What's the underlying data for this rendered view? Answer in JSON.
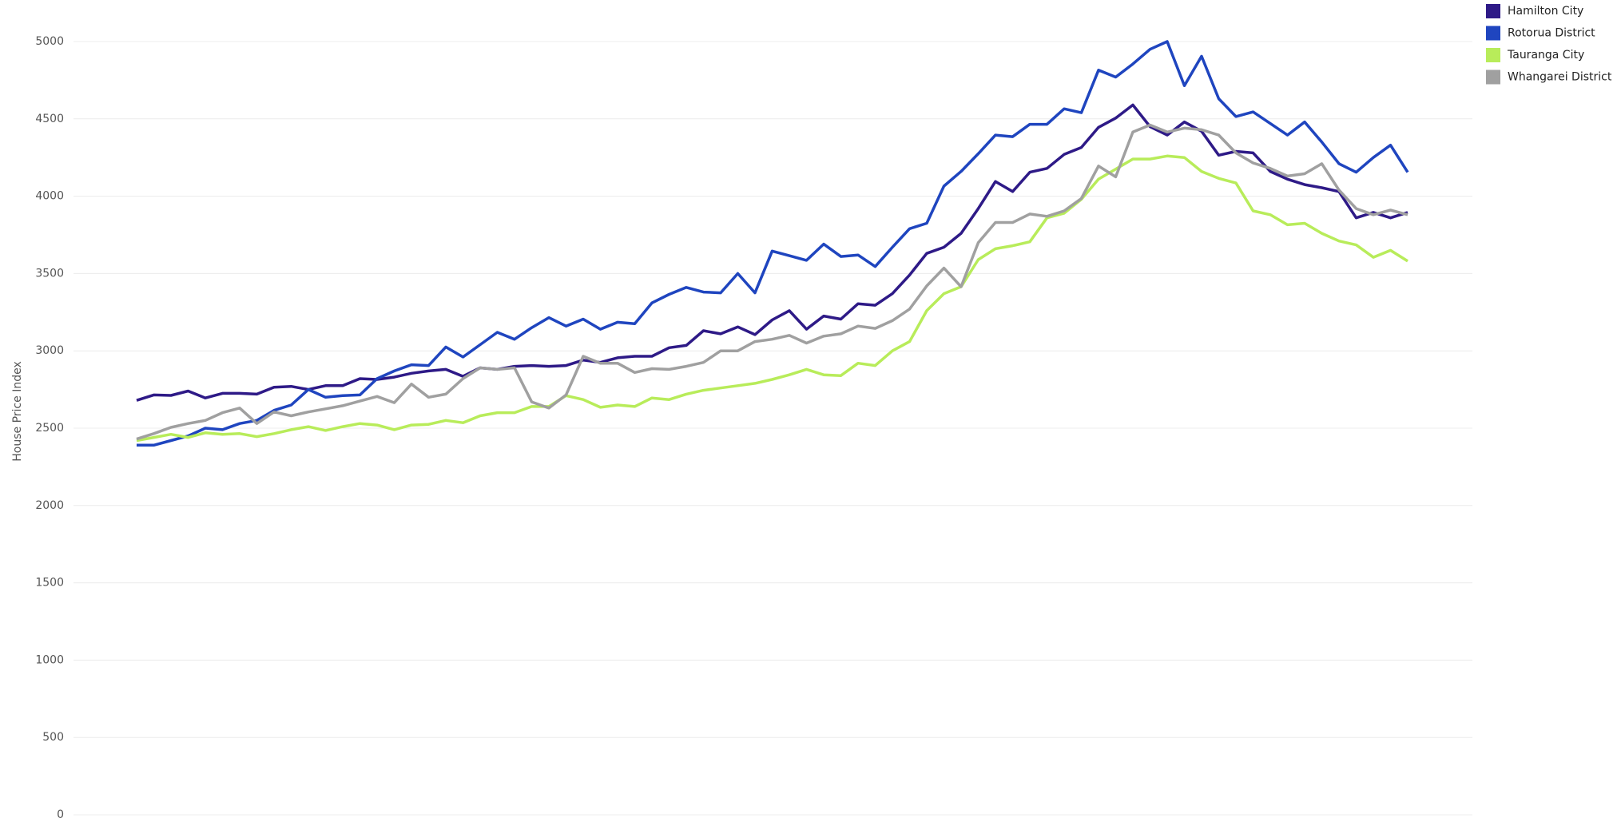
{
  "chart_data": {
    "type": "line",
    "y_label": "House Price Index",
    "categories": [
      null,
      null,
      null,
      null,
      null,
      null,
      null,
      null,
      null,
      null,
      null,
      null,
      null,
      null,
      null,
      null,
      null,
      null,
      null,
      null,
      null,
      null,
      null,
      null,
      null,
      null,
      null,
      null,
      null,
      null,
      null,
      null,
      null,
      null,
      null,
      null,
      null,
      null,
      null,
      null,
      null,
      null,
      null,
      null,
      null,
      null,
      null,
      null,
      null,
      null,
      null,
      null,
      null,
      null,
      null,
      null,
      null,
      null,
      null,
      null,
      null,
      null,
      null,
      null,
      null,
      null,
      null,
      null,
      null,
      null,
      null,
      null,
      null,
      null,
      null
    ],
    "ylim": [
      0,
      5000
    ],
    "yticks": [
      0,
      500,
      1000,
      1500,
      2000,
      2500,
      3000,
      3500,
      4000,
      4500,
      5000
    ],
    "grid": true,
    "legend": "top-right",
    "series": [
      {
        "name": "Hamilton City",
        "color": "#2e1a87",
        "values": [
          2680,
          2715,
          2712,
          2740,
          2695,
          2725,
          2725,
          2720,
          2765,
          2770,
          2750,
          2775,
          2775,
          2820,
          2815,
          2830,
          2855,
          2870,
          2880,
          2835,
          2890,
          2880,
          2900,
          2905,
          2900,
          2905,
          2940,
          2925,
          2955,
          2965,
          2965,
          3020,
          3035,
          3130,
          3110,
          3155,
          3105,
          3200,
          3260,
          3140,
          3225,
          3205,
          3305,
          3295,
          3370,
          3490,
          3630,
          3670,
          3760,
          3920,
          4095,
          4030,
          4155,
          4180,
          4270,
          4315,
          4445,
          4505,
          4590,
          4450,
          4395,
          4480,
          4420,
          4265,
          4290,
          4280,
          4160,
          4110,
          4075,
          4055,
          4030,
          3860,
          3895,
          3860,
          3895
        ]
      },
      {
        "name": "Rotorua District",
        "color": "#1f45bf",
        "values": [
          2390,
          2390,
          2420,
          2450,
          2500,
          2490,
          2530,
          2550,
          2615,
          2650,
          2750,
          2700,
          2710,
          2715,
          2820,
          2870,
          2910,
          2905,
          3025,
          2960,
          3040,
          3120,
          3075,
          3150,
          3215,
          3160,
          3205,
          3140,
          3185,
          3175,
          3310,
          3365,
          3410,
          3380,
          3375,
          3500,
          3375,
          3645,
          3615,
          3585,
          3690,
          3610,
          3620,
          3545,
          3670,
          3790,
          3825,
          4065,
          4160,
          4275,
          4395,
          4385,
          4465,
          4465,
          4565,
          4540,
          4815,
          4770,
          4855,
          4950,
          5000,
          4715,
          4905,
          4630,
          4515,
          4545,
          4470,
          4395,
          4480,
          4350,
          4210,
          4155,
          4250,
          4330,
          4155
        ]
      },
      {
        "name": "Tauranga City",
        "color": "#b8ec5a",
        "values": [
          2420,
          2440,
          2460,
          2440,
          2470,
          2460,
          2465,
          2445,
          2465,
          2490,
          2510,
          2485,
          2510,
          2530,
          2520,
          2490,
          2520,
          2525,
          2550,
          2535,
          2580,
          2600,
          2600,
          2640,
          2640,
          2710,
          2685,
          2635,
          2650,
          2640,
          2695,
          2685,
          2720,
          2745,
          2760,
          2775,
          2790,
          2815,
          2845,
          2880,
          2845,
          2840,
          2920,
          2905,
          3000,
          3060,
          3260,
          3370,
          3415,
          3590,
          3660,
          3680,
          3705,
          3860,
          3890,
          3980,
          4110,
          4175,
          4240,
          4240,
          4260,
          4250,
          4160,
          4115,
          4085,
          3905,
          3880,
          3815,
          3825,
          3760,
          3710,
          3685,
          3605,
          3650,
          3580
        ]
      },
      {
        "name": "Whangarei District",
        "color": "#a0a0a0",
        "values": [
          2430,
          2465,
          2505,
          2530,
          2550,
          2600,
          2630,
          2530,
          2605,
          2580,
          2605,
          2625,
          2645,
          2675,
          2705,
          2665,
          2785,
          2700,
          2720,
          2820,
          2890,
          2880,
          2890,
          2670,
          2630,
          2715,
          2965,
          2920,
          2920,
          2860,
          2885,
          2880,
          2900,
          2925,
          3000,
          3000,
          3060,
          3075,
          3100,
          3050,
          3095,
          3110,
          3160,
          3145,
          3195,
          3270,
          3420,
          3535,
          3415,
          3700,
          3830,
          3830,
          3885,
          3870,
          3905,
          3985,
          4195,
          4125,
          4415,
          4460,
          4415,
          4440,
          4430,
          4395,
          4280,
          4215,
          4180,
          4130,
          4145,
          4210,
          4040,
          3920,
          3880,
          3910,
          3880
        ]
      }
    ]
  }
}
